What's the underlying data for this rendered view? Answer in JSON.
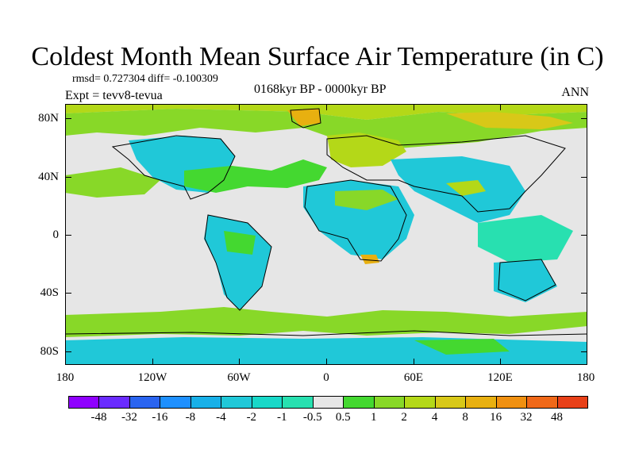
{
  "title": "Coldest Month Mean Surface Air Temperature (in C)",
  "stats": "rmsd= 0.727304 diff= -0.100309",
  "expt": "Expt = tevv8-tevua",
  "period": "0168kyr BP - 0000kyr BP",
  "season": "ANN",
  "map": {
    "projection": "cylindrical equidistant",
    "lat_labels": [
      "80N",
      "40N",
      "0",
      "40S",
      "80S"
    ],
    "lon_labels": [
      "180",
      "120W",
      "60W",
      "0",
      "60E",
      "120E",
      "180"
    ],
    "background_color": "#e6e6e6"
  },
  "colorbar": {
    "colors": [
      "#8f00ff",
      "#6a2bff",
      "#2a64f0",
      "#1e90ff",
      "#18b0e8",
      "#20c8d8",
      "#18d8c8",
      "#28e0b0",
      "#e6e6e6",
      "#44d830",
      "#88d828",
      "#b4d818",
      "#d8c818",
      "#e8b010",
      "#f09010",
      "#f06818",
      "#e84018"
    ],
    "labels": [
      "-48",
      "-32",
      "-16",
      "-8",
      "-4",
      "-2",
      "-1",
      "-0.5",
      "0.5",
      "1",
      "2",
      "4",
      "8",
      "16",
      "32",
      "48"
    ]
  }
}
